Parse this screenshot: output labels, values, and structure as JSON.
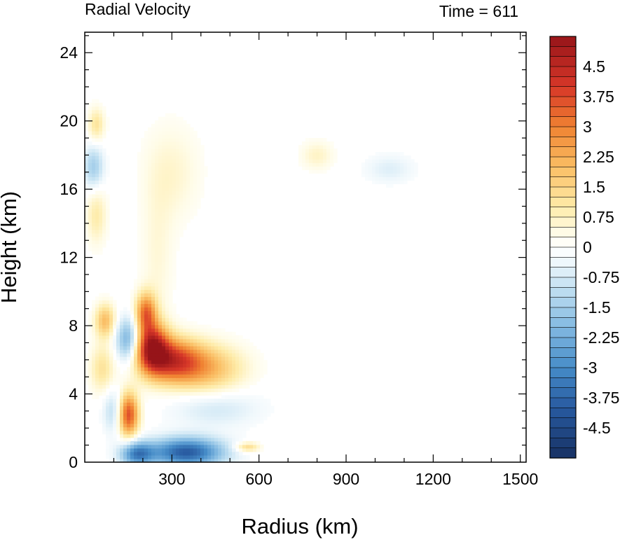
{
  "chart_data": {
    "type": "heatmap",
    "title_left": "Radial Velocity",
    "title_right": "Time = 611",
    "xlabel": "Radius (km)",
    "ylabel": "Height (km)",
    "xlim": [
      0,
      1520
    ],
    "ylim": [
      0,
      25.2
    ],
    "xticks": [
      300,
      600,
      900,
      1200,
      1500
    ],
    "yticks": [
      0,
      4,
      8,
      12,
      16,
      20,
      24
    ],
    "colorbar": {
      "min": -5.25,
      "max": 5.25,
      "step": 0.25,
      "tick_labels": [
        "4.5",
        "3.75",
        "3",
        "2.25",
        "1.5",
        "0.75",
        "0",
        "-0.75",
        "-1.5",
        "-2.25",
        "-3",
        "-3.75",
        "-4.5"
      ],
      "tick_values": [
        4.5,
        3.75,
        3,
        2.25,
        1.5,
        0.75,
        0,
        -0.75,
        -1.5,
        -2.25,
        -3,
        -3.75,
        -4.5
      ]
    },
    "features": [
      {
        "r": 150,
        "z": 2.8,
        "sr": 25,
        "sz": 0.9,
        "v": 3.8
      },
      {
        "r": 230,
        "z": 6.8,
        "sr": 40,
        "sz": 1.0,
        "v": 4.2
      },
      {
        "r": 300,
        "z": 6.0,
        "sr": 70,
        "sz": 0.9,
        "v": 3.5
      },
      {
        "r": 420,
        "z": 5.5,
        "sr": 90,
        "sz": 1.0,
        "v": 2.0
      },
      {
        "r": 210,
        "z": 8.8,
        "sr": 25,
        "sz": 0.8,
        "v": 3.0
      },
      {
        "r": 70,
        "z": 8.3,
        "sr": 25,
        "sz": 0.7,
        "v": 2.0
      },
      {
        "r": 60,
        "z": 5.5,
        "sr": 30,
        "sz": 1.0,
        "v": 1.2
      },
      {
        "r": 150,
        "z": 7.2,
        "sr": 30,
        "sz": 0.9,
        "v": -2.4
      },
      {
        "r": 350,
        "z": 0.6,
        "sr": 90,
        "sz": 0.6,
        "v": -4.0
      },
      {
        "r": 180,
        "z": 0.5,
        "sr": 40,
        "sz": 0.5,
        "v": -3.0
      },
      {
        "r": 450,
        "z": 3.2,
        "sr": 110,
        "sz": 0.8,
        "v": -0.8
      },
      {
        "r": 30,
        "z": 17.3,
        "sr": 25,
        "sz": 0.9,
        "v": -1.5
      },
      {
        "r": 40,
        "z": 19.8,
        "sr": 20,
        "sz": 0.7,
        "v": 1.2
      },
      {
        "r": 40,
        "z": 14.5,
        "sr": 25,
        "sz": 1.2,
        "v": 1.0
      },
      {
        "r": 300,
        "z": 17.0,
        "sr": 70,
        "sz": 2.0,
        "v": 0.6
      },
      {
        "r": 1050,
        "z": 17.2,
        "sr": 60,
        "sz": 0.6,
        "v": -0.6
      },
      {
        "r": 560,
        "z": 0.9,
        "sr": 30,
        "sz": 0.2,
        "v": 1.5
      },
      {
        "r": 100,
        "z": 3.0,
        "sr": 25,
        "sz": 0.9,
        "v": -1.2
      },
      {
        "r": 250,
        "z": 12.0,
        "sr": 40,
        "sz": 3.0,
        "v": 0.5
      },
      {
        "r": 800,
        "z": 18.0,
        "sr": 40,
        "sz": 0.6,
        "v": 0.7
      }
    ]
  }
}
